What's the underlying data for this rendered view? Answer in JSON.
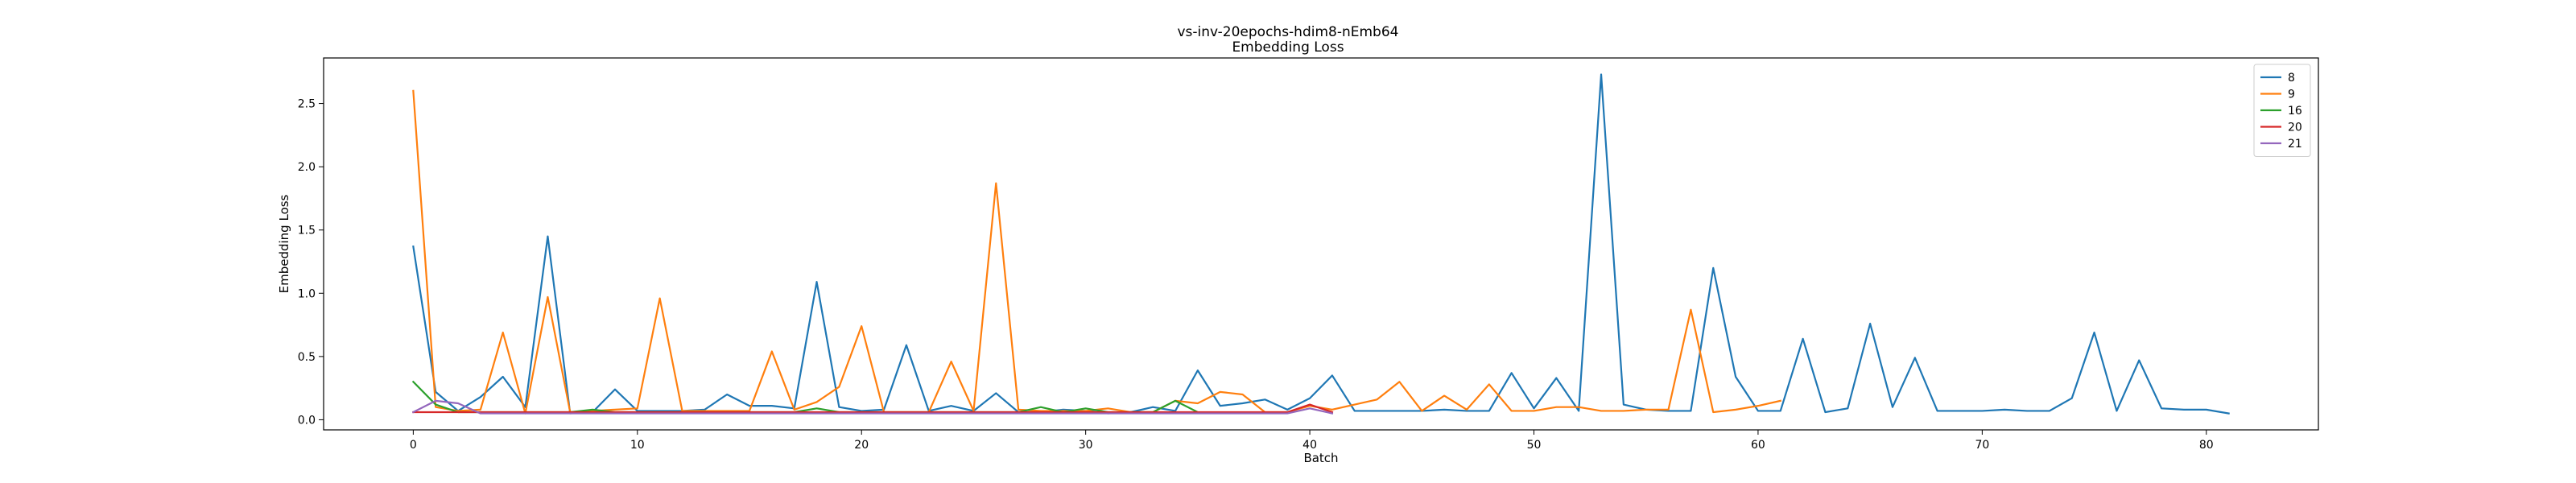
{
  "chart_data": {
    "type": "line",
    "title": "vs-inv-20epochs-hdim8-nEmb64",
    "subtitle": "Embedding Loss",
    "xlabel": "Batch",
    "ylabel": "Embedding Loss",
    "xlim": [
      -4,
      85
    ],
    "ylim": [
      -0.08,
      2.86
    ],
    "xticks": [
      0,
      10,
      20,
      30,
      40,
      50,
      60,
      70,
      80
    ],
    "yticks": [
      0.0,
      0.5,
      1.0,
      1.5,
      2.0,
      2.5
    ],
    "grid": false,
    "legend_position": "top-right",
    "series": [
      {
        "name": "8",
        "color": "#1f77b4",
        "values": [
          1.37,
          0.22,
          0.07,
          0.18,
          0.34,
          0.1,
          1.45,
          0.05,
          0.06,
          0.24,
          0.07,
          0.07,
          0.07,
          0.08,
          0.2,
          0.11,
          0.11,
          0.09,
          1.09,
          0.1,
          0.07,
          0.08,
          0.59,
          0.07,
          0.11,
          0.07,
          0.21,
          0.06,
          0.06,
          0.08,
          0.07,
          0.05,
          0.06,
          0.1,
          0.07,
          0.39,
          0.11,
          0.13,
          0.16,
          0.08,
          0.17,
          0.35,
          0.07,
          0.07,
          0.07,
          0.07,
          0.08,
          0.07,
          0.07,
          0.37,
          0.09,
          0.33,
          0.07,
          2.73,
          0.12,
          0.08,
          0.07,
          0.07,
          1.2,
          0.34,
          0.07,
          0.07,
          0.64,
          0.06,
          0.09,
          0.76,
          0.1,
          0.49,
          0.07,
          0.07,
          0.07,
          0.08,
          0.07,
          0.07,
          0.17,
          0.69,
          0.07,
          0.47,
          0.09,
          0.08,
          0.08,
          0.05
        ]
      },
      {
        "name": "9",
        "color": "#ff7f0e",
        "values": [
          2.6,
          0.1,
          0.07,
          0.08,
          0.69,
          0.05,
          0.97,
          0.06,
          0.07,
          0.08,
          0.09,
          0.96,
          0.07,
          0.07,
          0.07,
          0.07,
          0.54,
          0.08,
          0.14,
          0.26,
          0.74,
          0.06,
          0.06,
          0.06,
          0.46,
          0.07,
          1.87,
          0.08,
          0.07,
          0.07,
          0.07,
          0.09,
          0.06,
          0.06,
          0.15,
          0.13,
          0.22,
          0.2,
          0.06,
          0.06,
          0.11,
          0.08,
          0.12,
          0.16,
          0.3,
          0.07,
          0.19,
          0.08,
          0.28,
          0.07,
          0.07,
          0.1,
          0.1,
          0.07,
          0.07,
          0.08,
          0.08,
          0.87,
          0.06,
          0.08,
          0.11,
          0.15
        ]
      },
      {
        "name": "16",
        "color": "#2ca02c",
        "values": [
          0.3,
          0.12,
          0.06,
          0.06,
          0.06,
          0.06,
          0.06,
          0.06,
          0.08,
          0.06,
          0.06,
          0.06,
          0.06,
          0.06,
          0.06,
          0.06,
          0.06,
          0.06,
          0.09,
          0.06,
          0.06,
          0.06,
          0.06,
          0.06,
          0.06,
          0.06,
          0.06,
          0.06,
          0.1,
          0.06,
          0.09,
          0.06,
          0.06,
          0.06,
          0.15,
          0.06
        ]
      },
      {
        "name": "20",
        "color": "#d62728",
        "values": [
          0.06,
          0.06,
          0.06,
          0.06,
          0.06,
          0.06,
          0.06,
          0.06,
          0.06,
          0.06,
          0.06,
          0.06,
          0.06,
          0.06,
          0.06,
          0.06,
          0.06,
          0.06,
          0.06,
          0.06,
          0.06,
          0.06,
          0.06,
          0.06,
          0.06,
          0.06,
          0.06,
          0.06,
          0.06,
          0.06,
          0.06,
          0.06,
          0.06,
          0.06,
          0.06,
          0.06,
          0.06,
          0.06,
          0.06,
          0.06,
          0.12,
          0.06
        ]
      },
      {
        "name": "21",
        "color": "#9467bd",
        "values": [
          0.06,
          0.15,
          0.13,
          0.05,
          0.05,
          0.05,
          0.05,
          0.05,
          0.05,
          0.05,
          0.05,
          0.05,
          0.05,
          0.05,
          0.05,
          0.05,
          0.05,
          0.05,
          0.05,
          0.05,
          0.05,
          0.05,
          0.05,
          0.05,
          0.05,
          0.05,
          0.05,
          0.05,
          0.05,
          0.05,
          0.05,
          0.05,
          0.05,
          0.05,
          0.05,
          0.05,
          0.05,
          0.05,
          0.05,
          0.05,
          0.09,
          0.05
        ]
      }
    ]
  }
}
